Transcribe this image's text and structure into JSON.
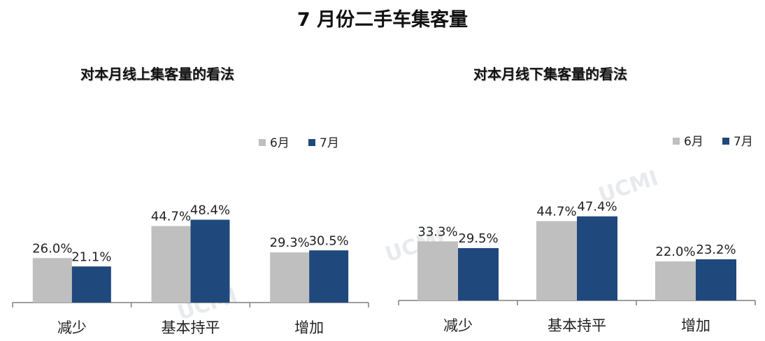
{
  "title": "7 月份二手车集客量",
  "legend": {
    "june": "6月",
    "july": "7月"
  },
  "colors": {
    "june": "#bfbfbf",
    "july": "#1f497d",
    "axis": "#7f7f7f"
  },
  "watermark": "UCMI",
  "chart_data": [
    {
      "type": "bar",
      "title": "对本月线上集客量的看法",
      "categories": [
        "减少",
        "基本持平",
        "增加"
      ],
      "series": [
        {
          "name": "6月",
          "values": [
            26.0,
            44.7,
            29.3
          ],
          "labels": [
            "26.0%",
            "44.7%",
            "29.3%"
          ]
        },
        {
          "name": "7月",
          "values": [
            21.1,
            48.4,
            30.5
          ],
          "labels": [
            "21.1%",
            "48.4%",
            "30.5%"
          ]
        }
      ],
      "legend_position": "top-right",
      "grid": false
    },
    {
      "type": "bar",
      "title": "对本月线下集客量的看法",
      "categories": [
        "减少",
        "基本持平",
        "增加"
      ],
      "series": [
        {
          "name": "6月",
          "values": [
            33.3,
            44.7,
            22.0
          ],
          "labels": [
            "33.3%",
            "44.7%",
            "22.0%"
          ]
        },
        {
          "name": "7月",
          "values": [
            29.5,
            47.4,
            23.2
          ],
          "labels": [
            "29.5%",
            "47.4%",
            "23.2%"
          ]
        }
      ],
      "legend_position": "top-right",
      "grid": false
    }
  ]
}
